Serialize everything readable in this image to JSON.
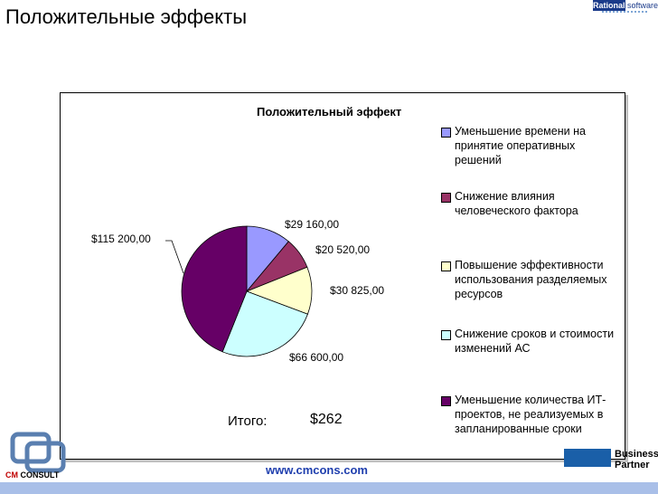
{
  "slide": {
    "title": "Положительные эффекты",
    "url": "www.cmcons.com",
    "total_label": "Итого:",
    "total_value": "$262"
  },
  "logos": {
    "rational_top": "Rational.",
    "rational_right": "software",
    "partner_line1": "Business",
    "partner_line2": "Partner",
    "cm_logo_cm": "CM",
    "cm_logo_consult": "CONSULT"
  },
  "chart_data": {
    "type": "pie",
    "title": "Положительный эффект",
    "legend_position": "right",
    "slices": [
      {
        "label": "Уменьшение времени на принятие оперативных решений",
        "value": 29160,
        "data_label": "$29 160,00",
        "color": "#9999ff"
      },
      {
        "label": "Снижение влияния человеческого фактора",
        "value": 20520,
        "data_label": "$20 520,00",
        "color": "#993366"
      },
      {
        "label": "Повышение эффективности использования разделяемых ресурсов",
        "value": 30825,
        "data_label": "$30 825,00",
        "color": "#ffffcc"
      },
      {
        "label": "Снижение сроков и стоимости изменений АС",
        "value": 66600,
        "data_label": "$66 600,00",
        "color": "#ccffff"
      },
      {
        "label": "Уменьшение количества ИТ-проектов, не реализуемых в запланированные сроки",
        "value": 115200,
        "data_label": "$115 200,00",
        "color": "#660066"
      }
    ]
  }
}
